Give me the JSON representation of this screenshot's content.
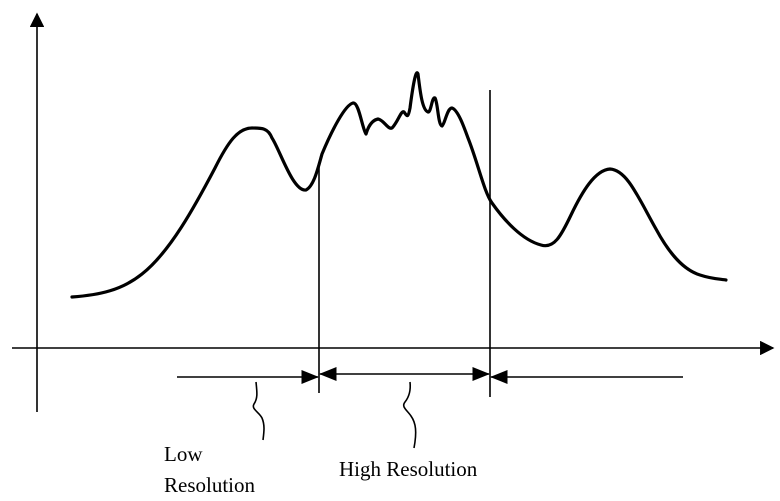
{
  "labels": {
    "low_resolution_line1": "Low",
    "low_resolution_line2": "Resolution",
    "high_resolution": "High Resolution"
  },
  "colors": {
    "stroke": "#000000",
    "background": "#ffffff"
  }
}
